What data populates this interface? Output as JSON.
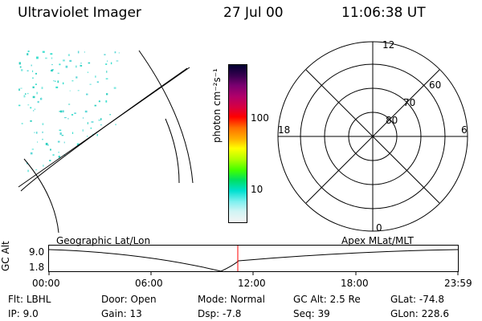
{
  "header": {
    "instrument": "Ultraviolet Imager",
    "date": "27 Jul 00",
    "time": "11:06:38 UT"
  },
  "colorbar": {
    "unit_label": "photon cm⁻²s⁻¹",
    "ticks": [
      {
        "value": 100,
        "label": "100"
      },
      {
        "value": 10,
        "label": "10"
      }
    ],
    "colors": [
      "#000030",
      "#3a0050",
      "#7a0070",
      "#b0006a",
      "#d80040",
      "#ff0000",
      "#ff7000",
      "#ffb000",
      "#ffff00",
      "#b0ff00",
      "#40ff00",
      "#00e060",
      "#00e0d0",
      "#80f0f0",
      "#d0f4f4",
      "#f4f4f4"
    ]
  },
  "polar_plot": {
    "top_label": "12",
    "bottom_label": "0",
    "left_label": "18",
    "right_label": "6",
    "lat_labels": [
      "80",
      "70",
      "60"
    ]
  },
  "timeline": {
    "left_title": "Geographic Lat/Lon",
    "right_title": "Apex MLat/MLT",
    "y_axis_label": "GC Alt",
    "y_top": "9.0",
    "y_bottom": "1.8",
    "x_ticks": [
      "00:00",
      "06:00",
      "12:00",
      "18:00",
      "23:59"
    ],
    "marker_color": "#ff0000"
  },
  "info": {
    "filter_label": "Flt:",
    "filter_value": "LBHL",
    "ip_label": "IP:",
    "ip_value": "9.0",
    "door_label": "Door:",
    "door_value": "Open",
    "gain_label": "Gain:",
    "gain_value": "13",
    "mode_label": "Mode:",
    "mode_value": "Normal",
    "dsp_label": "Dsp:",
    "dsp_value": "-7.8",
    "gcalt_label": "GC Alt:",
    "gcalt_value": "2.5 Re",
    "seq_label": "Seq:",
    "seq_value": "39",
    "glat_label": "GLat:",
    "glat_value": "-74.8",
    "glon_label": "GLon:",
    "glon_value": "228.6"
  }
}
